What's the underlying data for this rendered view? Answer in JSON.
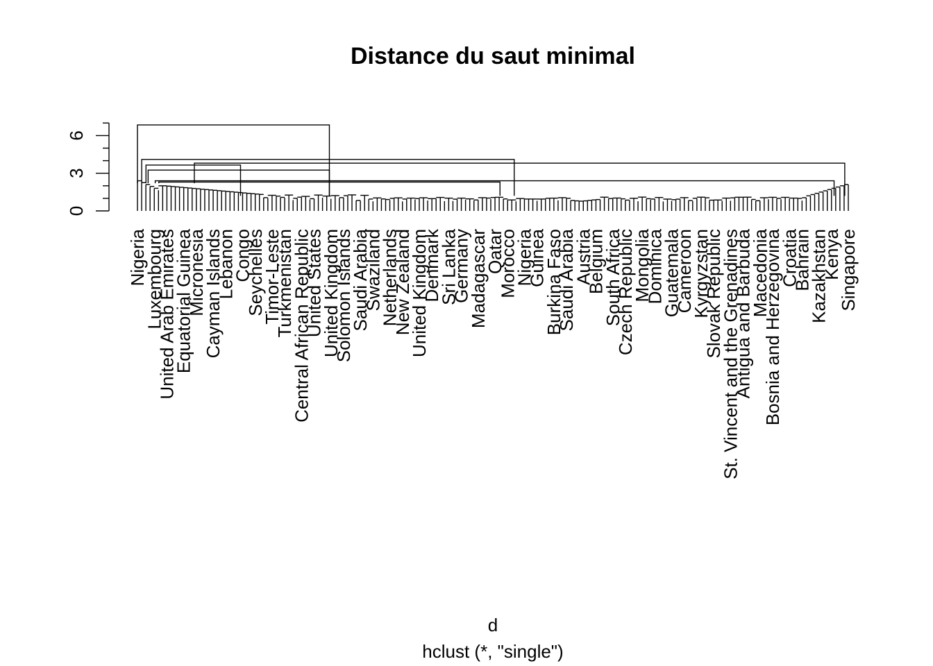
{
  "chart_data": {
    "type": "dendrogram",
    "title": "Distance du saut minimal",
    "xlabel": "d",
    "sublabel": "hclust (*, \"single\")",
    "ylim": [
      0,
      6.8
    ],
    "yticks": [
      0,
      3,
      6
    ],
    "top_merges": [
      {
        "height": 6.85,
        "note": "root merge"
      },
      {
        "height": 4.1
      },
      {
        "height": 3.8
      },
      {
        "height": 3.65
      },
      {
        "height": 3.25
      },
      {
        "height": 2.4
      },
      {
        "height": 2.3
      }
    ],
    "leaf_labels": [
      "Nigeria",
      "Luxembourg",
      "United Arab Emirates",
      "Equatorial Guinea",
      "Micronesia",
      "Cayman Islands",
      "Lebanon",
      "Congo",
      "Seychelles",
      "Timor-Leste",
      "Turkmenistan",
      "Central African Republic",
      "United States",
      "United Kingdom",
      "Solomon Islands",
      "Saudi Arabia",
      "Swaziland",
      "Netherlands",
      "New Zealand",
      "United Kingdom",
      "Denmark",
      "Sri Lanka",
      "Germany",
      "Madagascar",
      "Qatar",
      "Morocco",
      "Nigeria",
      "Guinea",
      "Burkina Faso",
      "Saudi Arabia",
      "Austria",
      "Belgium",
      "South Africa",
      "Czech Republic",
      "Mongolia",
      "Dominica",
      "Guatemala",
      "Cameroon",
      "Kyrgyzstan",
      "Slovak Republic",
      "St. Vincent and the Grenadines",
      "Antigua and Barbuda",
      "Macedonia",
      "Bosnia and Herzegovina",
      "Croatia",
      "Bahrain",
      "Kazakhstan",
      "Kenya",
      "Singapore"
    ],
    "leaf_count": 170,
    "grid": false,
    "legend": "none"
  }
}
